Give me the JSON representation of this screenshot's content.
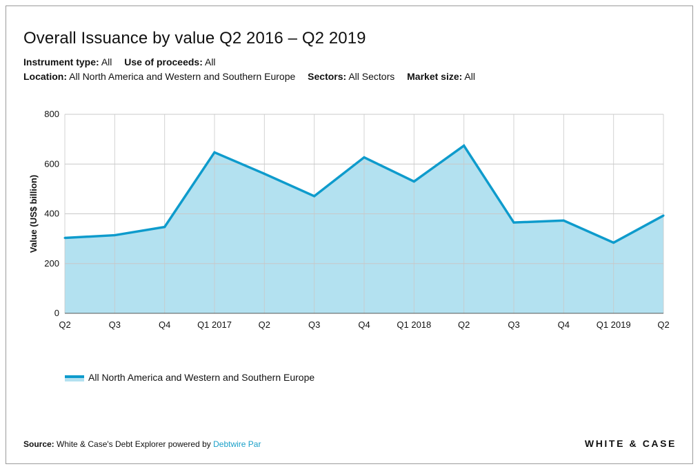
{
  "title": "Overall Issuance by value Q2 2016 – Q2 2019",
  "filters": {
    "instrument_type": {
      "label": "Instrument type:",
      "value": "All"
    },
    "use_of_proceeds": {
      "label": "Use of proceeds:",
      "value": "All"
    },
    "location": {
      "label": "Location:",
      "value": "All North America and Western and Southern Europe"
    },
    "sectors": {
      "label": "Sectors:",
      "value": "All Sectors"
    },
    "market_size": {
      "label": "Market size:",
      "value": "All"
    }
  },
  "colors": {
    "line": "#0e9bcc",
    "fill": "#b3e1f0",
    "grid": "#c8c8c8"
  },
  "chart_data": {
    "type": "area",
    "categories": [
      "Q2",
      "Q3",
      "Q4",
      "Q1 2017",
      "Q2",
      "Q3",
      "Q4",
      "Q1 2018",
      "Q2",
      "Q3",
      "Q4",
      "Q1 2019",
      "Q2"
    ],
    "series": [
      {
        "name": "All North America and Western and Southern Europe",
        "values": [
          303,
          314,
          347,
          647,
          561,
          471,
          627,
          530,
          674,
          365,
          373,
          284,
          393
        ]
      }
    ],
    "ylabel": "Value (US$ billion)",
    "ylim": [
      0,
      800
    ],
    "yticks": [
      "0",
      "200",
      "400",
      "600",
      "800"
    ],
    "grid": true,
    "legend": "bottom-left"
  },
  "footer": {
    "source_label": "Source:",
    "source_text": "White & Case's Debt Explorer powered by",
    "source_link": "Debtwire Par",
    "brand": "WHITE & CASE"
  }
}
